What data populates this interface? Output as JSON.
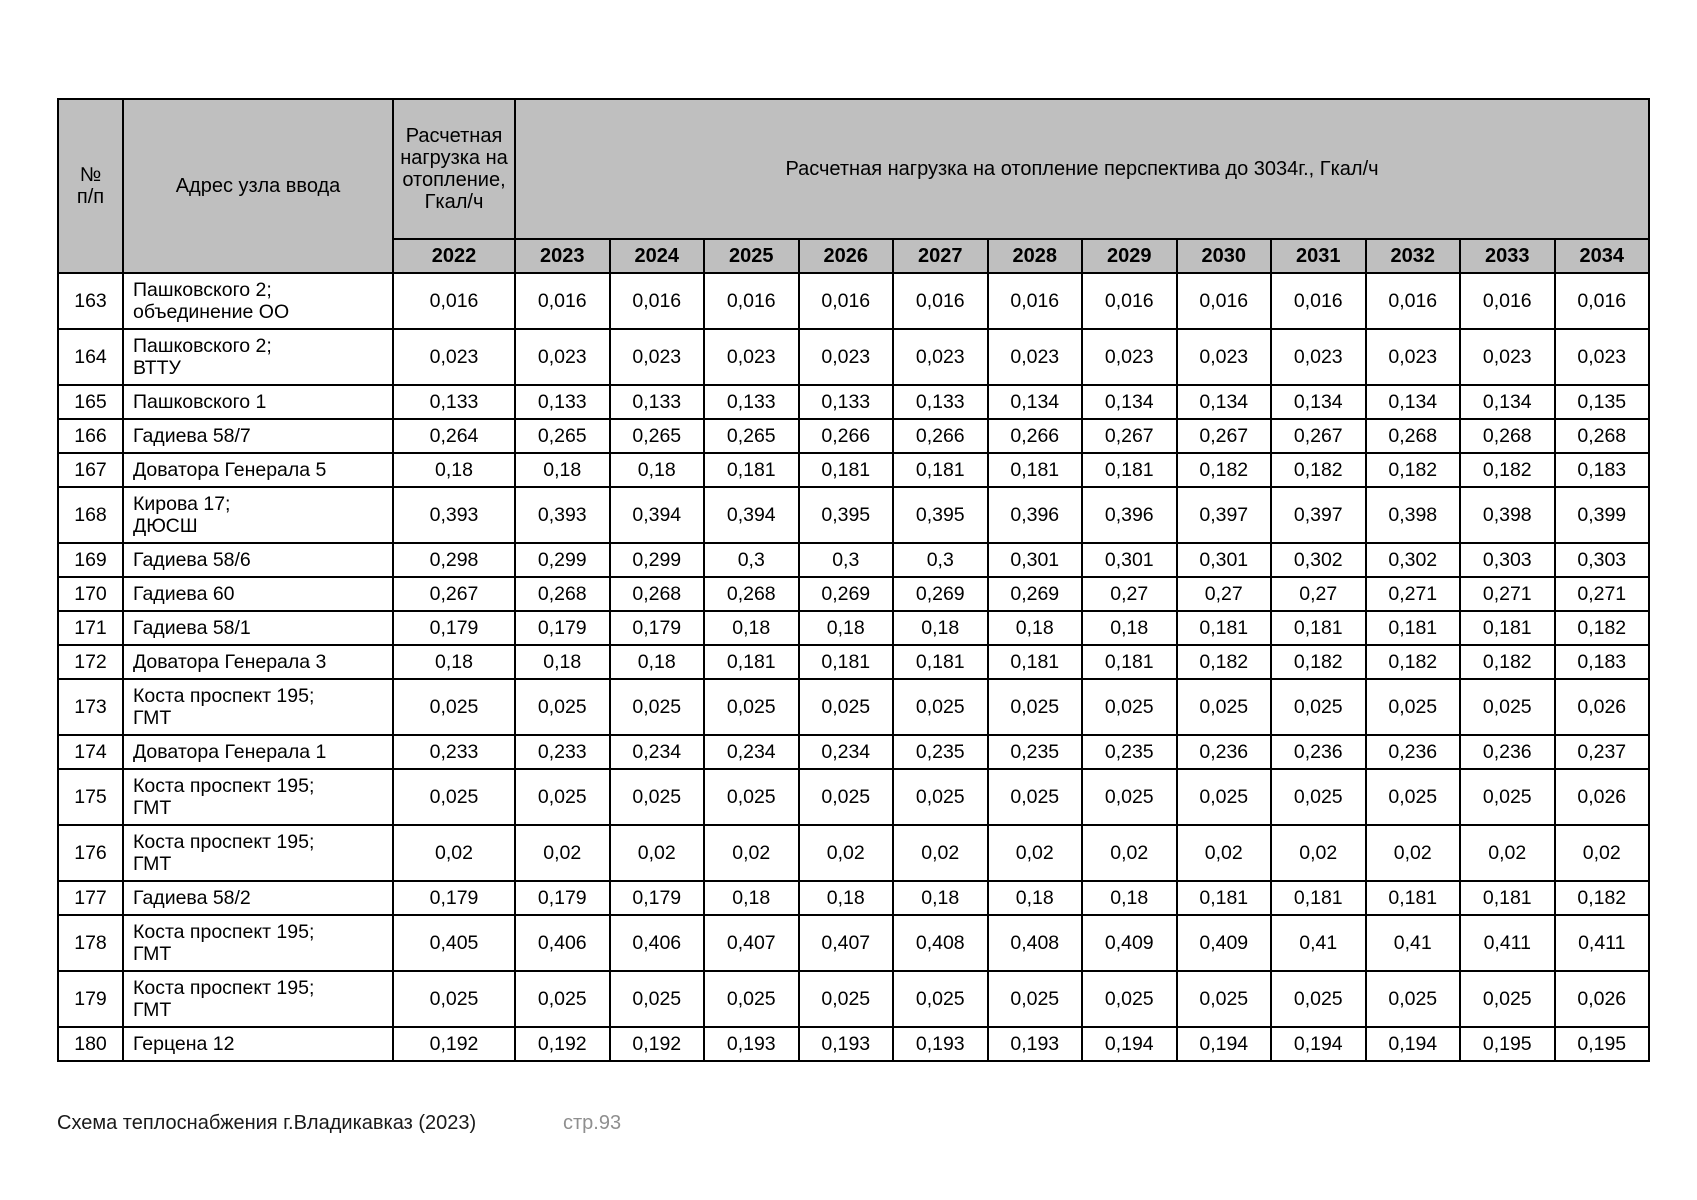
{
  "table": {
    "header": {
      "col_num": "№\nп/п",
      "col_address": "Адрес узла ввода",
      "col_load_base": "Расчетная нагрузка на отопление, Гкал/ч",
      "col_perspective": "Расчетная нагрузка на отопление перспектива до 3034г., Гкал/ч",
      "base_year": "2022",
      "years": [
        "2023",
        "2024",
        "2025",
        "2026",
        "2027",
        "2028",
        "2029",
        "2030",
        "2031",
        "2032",
        "2033",
        "2034"
      ]
    },
    "rows": [
      {
        "num": "163",
        "address": "Пашковского 2;\nобъединение ОО",
        "values": [
          "0,016",
          "0,016",
          "0,016",
          "0,016",
          "0,016",
          "0,016",
          "0,016",
          "0,016",
          "0,016",
          "0,016",
          "0,016",
          "0,016",
          "0,016"
        ]
      },
      {
        "num": "164",
        "address": "Пашковского 2;\nВТТУ",
        "values": [
          "0,023",
          "0,023",
          "0,023",
          "0,023",
          "0,023",
          "0,023",
          "0,023",
          "0,023",
          "0,023",
          "0,023",
          "0,023",
          "0,023",
          "0,023"
        ]
      },
      {
        "num": "165",
        "address": "Пашковского 1",
        "values": [
          "0,133",
          "0,133",
          "0,133",
          "0,133",
          "0,133",
          "0,133",
          "0,134",
          "0,134",
          "0,134",
          "0,134",
          "0,134",
          "0,134",
          "0,135"
        ]
      },
      {
        "num": "166",
        "address": "Гадиева 58/7",
        "values": [
          "0,264",
          "0,265",
          "0,265",
          "0,265",
          "0,266",
          "0,266",
          "0,266",
          "0,267",
          "0,267",
          "0,267",
          "0,268",
          "0,268",
          "0,268"
        ]
      },
      {
        "num": "167",
        "address": "Доватора Генерала 5",
        "values": [
          "0,18",
          "0,18",
          "0,18",
          "0,181",
          "0,181",
          "0,181",
          "0,181",
          "0,181",
          "0,182",
          "0,182",
          "0,182",
          "0,182",
          "0,183"
        ]
      },
      {
        "num": "168",
        "address": "Кирова 17;\nДЮСШ",
        "values": [
          "0,393",
          "0,393",
          "0,394",
          "0,394",
          "0,395",
          "0,395",
          "0,396",
          "0,396",
          "0,397",
          "0,397",
          "0,398",
          "0,398",
          "0,399"
        ]
      },
      {
        "num": "169",
        "address": "Гадиева 58/6",
        "values": [
          "0,298",
          "0,299",
          "0,299",
          "0,3",
          "0,3",
          "0,3",
          "0,301",
          "0,301",
          "0,301",
          "0,302",
          "0,302",
          "0,303",
          "0,303"
        ]
      },
      {
        "num": "170",
        "address": "Гадиева 60",
        "values": [
          "0,267",
          "0,268",
          "0,268",
          "0,268",
          "0,269",
          "0,269",
          "0,269",
          "0,27",
          "0,27",
          "0,27",
          "0,271",
          "0,271",
          "0,271"
        ]
      },
      {
        "num": "171",
        "address": "Гадиева 58/1",
        "values": [
          "0,179",
          "0,179",
          "0,179",
          "0,18",
          "0,18",
          "0,18",
          "0,18",
          "0,18",
          "0,181",
          "0,181",
          "0,181",
          "0,181",
          "0,182"
        ]
      },
      {
        "num": "172",
        "address": "Доватора Генерала 3",
        "values": [
          "0,18",
          "0,18",
          "0,18",
          "0,181",
          "0,181",
          "0,181",
          "0,181",
          "0,181",
          "0,182",
          "0,182",
          "0,182",
          "0,182",
          "0,183"
        ]
      },
      {
        "num": "173",
        "address": "Коста проспект 195;\nГМТ",
        "values": [
          "0,025",
          "0,025",
          "0,025",
          "0,025",
          "0,025",
          "0,025",
          "0,025",
          "0,025",
          "0,025",
          "0,025",
          "0,025",
          "0,025",
          "0,026"
        ]
      },
      {
        "num": "174",
        "address": "Доватора Генерала 1",
        "values": [
          "0,233",
          "0,233",
          "0,234",
          "0,234",
          "0,234",
          "0,235",
          "0,235",
          "0,235",
          "0,236",
          "0,236",
          "0,236",
          "0,236",
          "0,237"
        ]
      },
      {
        "num": "175",
        "address": "Коста проспект 195;\nГМТ",
        "values": [
          "0,025",
          "0,025",
          "0,025",
          "0,025",
          "0,025",
          "0,025",
          "0,025",
          "0,025",
          "0,025",
          "0,025",
          "0,025",
          "0,025",
          "0,026"
        ]
      },
      {
        "num": "176",
        "address": "Коста проспект 195;\nГМТ",
        "values": [
          "0,02",
          "0,02",
          "0,02",
          "0,02",
          "0,02",
          "0,02",
          "0,02",
          "0,02",
          "0,02",
          "0,02",
          "0,02",
          "0,02",
          "0,02"
        ]
      },
      {
        "num": "177",
        "address": "Гадиева 58/2",
        "values": [
          "0,179",
          "0,179",
          "0,179",
          "0,18",
          "0,18",
          "0,18",
          "0,18",
          "0,18",
          "0,181",
          "0,181",
          "0,181",
          "0,181",
          "0,182"
        ]
      },
      {
        "num": "178",
        "address": "Коста проспект 195;\nГМТ",
        "values": [
          "0,405",
          "0,406",
          "0,406",
          "0,407",
          "0,407",
          "0,408",
          "0,408",
          "0,409",
          "0,409",
          "0,41",
          "0,41",
          "0,411",
          "0,411"
        ]
      },
      {
        "num": "179",
        "address": "Коста проспект 195;\nГМТ",
        "values": [
          "0,025",
          "0,025",
          "0,025",
          "0,025",
          "0,025",
          "0,025",
          "0,025",
          "0,025",
          "0,025",
          "0,025",
          "0,025",
          "0,025",
          "0,026"
        ]
      },
      {
        "num": "180",
        "address": "Герцена 12",
        "values": [
          "0,192",
          "0,192",
          "0,192",
          "0,193",
          "0,193",
          "0,193",
          "0,193",
          "0,194",
          "0,194",
          "0,194",
          "0,194",
          "0,195",
          "0,195"
        ]
      }
    ]
  },
  "footer": {
    "doc_title": "Схема теплоснабжения г.Владикавказ (2023)",
    "page_label": "стр.93"
  }
}
